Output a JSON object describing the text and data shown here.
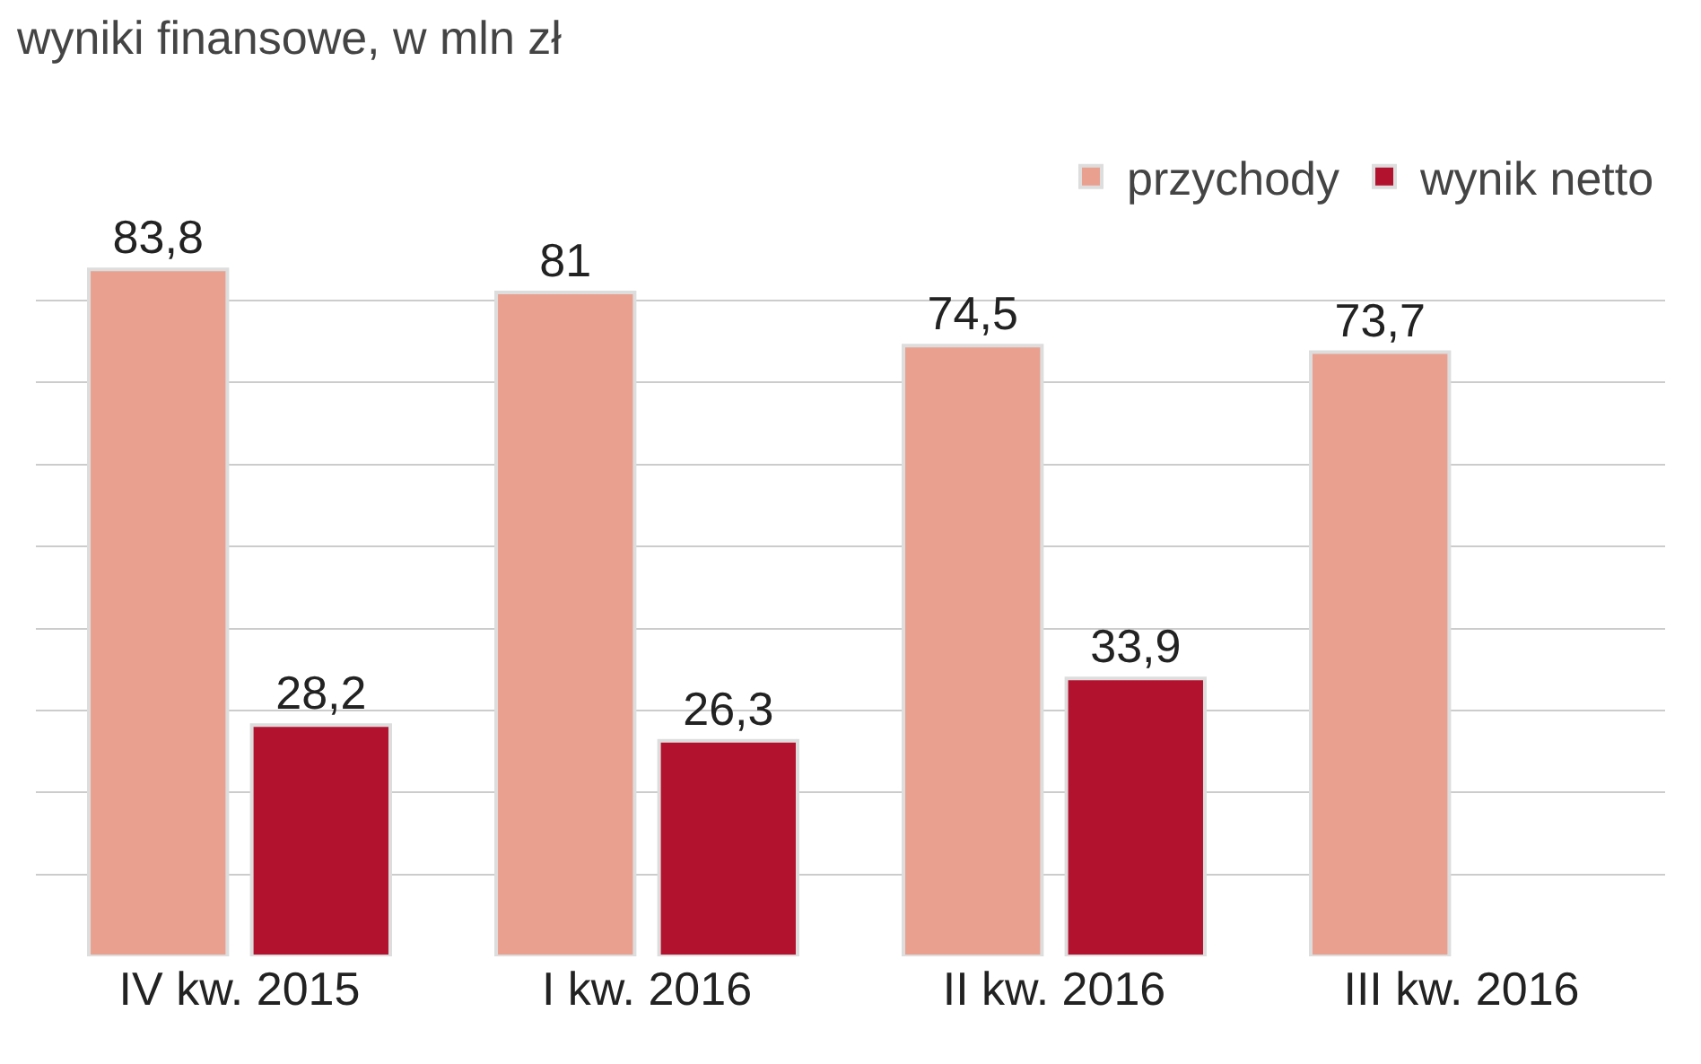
{
  "chart_data": {
    "type": "bar",
    "title": "wyniki finansowe, w mln zł",
    "categories": [
      "IV kw. 2015",
      "I kw. 2016",
      "II kw. 2016",
      "III kw. 2016"
    ],
    "series": [
      {
        "name": "przychody",
        "color": "#e9a08f",
        "values": [
          83.8,
          81,
          74.5,
          73.7
        ],
        "value_labels": [
          "83,8",
          "81",
          "74,5",
          "73,7"
        ]
      },
      {
        "name": "wynik netto",
        "color": "#b3122e",
        "values": [
          28.2,
          26.3,
          33.9,
          null
        ],
        "value_labels": [
          "28,2",
          "26,3",
          "33,9",
          null
        ]
      }
    ],
    "grid": "y",
    "legend": "top right",
    "tick_labels": "x"
  }
}
